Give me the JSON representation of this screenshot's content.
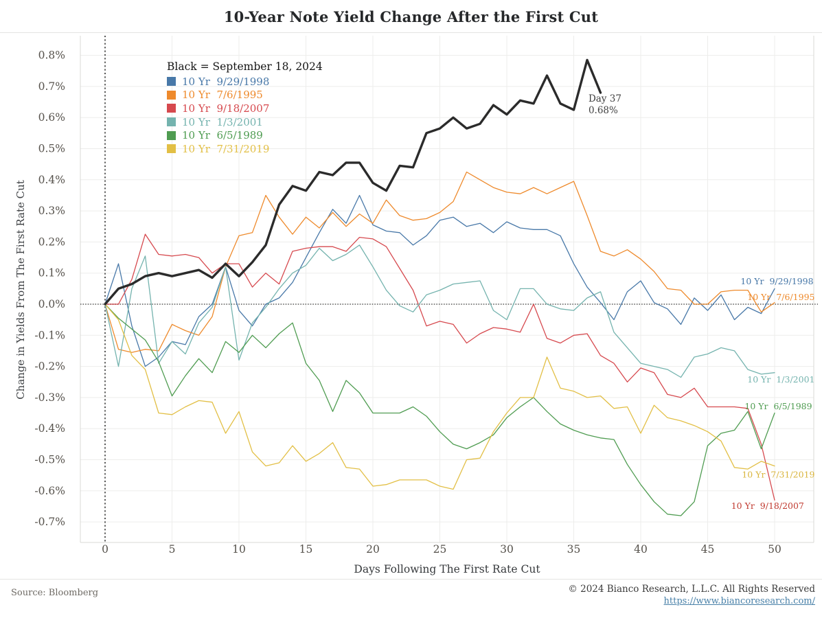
{
  "title": "10-Year Note Yield Change After the First Cut",
  "legend": {
    "heading": "Black = September 18, 2024"
  },
  "chart_data": {
    "type": "line",
    "title": "10-Year Note Yield Change After the First Cut",
    "xlabel": "Days Following The First Rate Cut",
    "ylabel": "Change in Yields From The First Rate Cut",
    "x_ticks": [
      0,
      5,
      10,
      15,
      20,
      25,
      30,
      35,
      40,
      45,
      50
    ],
    "y_ticks": [
      0.8,
      0.7,
      0.6,
      0.5,
      0.4,
      0.3,
      0.2,
      0.1,
      0.0,
      -0.1,
      -0.2,
      -0.3,
      -0.4,
      -0.5,
      -0.6,
      -0.7
    ],
    "y_tick_suffix": "%",
    "xlim": [
      -1.8,
      52.9
    ],
    "ylim": [
      -0.77,
      0.86
    ],
    "grid": true,
    "zero_line": true,
    "day_zero_rule": true,
    "x_step": 1,
    "series": [
      {
        "name": "September 18, 2024",
        "legend_label": null,
        "color": "#2b2b2b",
        "width": 3.4,
        "x_start": 0,
        "values": [
          0.0,
          0.05,
          0.065,
          0.09,
          0.1,
          0.09,
          0.1,
          0.11,
          0.085,
          0.13,
          0.09,
          0.135,
          0.19,
          0.32,
          0.38,
          0.365,
          0.425,
          0.415,
          0.455,
          0.455,
          0.39,
          0.365,
          0.445,
          0.44,
          0.55,
          0.565,
          0.6,
          0.565,
          0.58,
          0.64,
          0.61,
          0.655,
          0.645,
          0.735,
          0.645,
          0.625,
          0.785,
          0.68
        ]
      },
      {
        "name": "10 Yr  9/29/1998",
        "color": "#4878a8",
        "width": 1.3,
        "x_start": 0,
        "values": [
          0.0,
          0.13,
          -0.07,
          -0.2,
          -0.17,
          -0.12,
          -0.13,
          -0.04,
          0.0,
          0.12,
          -0.02,
          -0.07,
          0.0,
          0.02,
          0.07,
          0.15,
          0.23,
          0.305,
          0.26,
          0.35,
          0.255,
          0.235,
          0.23,
          0.19,
          0.22,
          0.27,
          0.28,
          0.25,
          0.26,
          0.23,
          0.265,
          0.245,
          0.24,
          0.24,
          0.22,
          0.13,
          0.055,
          0.005,
          -0.05,
          0.04,
          0.075,
          0.005,
          -0.015,
          -0.065,
          0.02,
          -0.02,
          0.03,
          -0.05,
          -0.01,
          -0.03,
          0.05
        ]
      },
      {
        "name": "10 Yr  7/6/1995",
        "color": "#ee8a2c",
        "width": 1.3,
        "x_start": 0,
        "values": [
          0.0,
          -0.145,
          -0.155,
          -0.145,
          -0.15,
          -0.065,
          -0.085,
          -0.1,
          -0.04,
          0.12,
          0.22,
          0.23,
          0.35,
          0.28,
          0.225,
          0.28,
          0.245,
          0.295,
          0.25,
          0.29,
          0.26,
          0.335,
          0.285,
          0.27,
          0.275,
          0.295,
          0.33,
          0.425,
          0.4,
          0.375,
          0.36,
          0.355,
          0.375,
          0.355,
          0.375,
          0.395,
          0.285,
          0.17,
          0.155,
          0.175,
          0.145,
          0.105,
          0.05,
          0.045,
          0.0,
          0.0,
          0.04,
          0.045,
          0.045,
          -0.025,
          0.005
        ]
      },
      {
        "name": "10 Yr  9/18/2007",
        "color": "#d6494e",
        "width": 1.3,
        "x_start": 0,
        "values": [
          0.0,
          0.0,
          0.08,
          0.225,
          0.16,
          0.155,
          0.16,
          0.15,
          0.1,
          0.13,
          0.13,
          0.055,
          0.1,
          0.065,
          0.17,
          0.18,
          0.185,
          0.185,
          0.17,
          0.215,
          0.21,
          0.185,
          0.115,
          0.045,
          -0.07,
          -0.055,
          -0.065,
          -0.125,
          -0.095,
          -0.075,
          -0.08,
          -0.09,
          0.0,
          -0.11,
          -0.125,
          -0.1,
          -0.095,
          -0.165,
          -0.19,
          -0.25,
          -0.205,
          -0.22,
          -0.29,
          -0.3,
          -0.27,
          -0.33,
          -0.33,
          -0.33,
          -0.335,
          -0.45,
          -0.63
        ]
      },
      {
        "name": "10 Yr  1/3/2001",
        "color": "#74b3ae",
        "width": 1.3,
        "x_start": 0,
        "values": [
          0.0,
          -0.2,
          0.05,
          0.155,
          -0.19,
          -0.12,
          -0.16,
          -0.06,
          -0.01,
          0.12,
          -0.18,
          -0.06,
          -0.01,
          0.05,
          0.1,
          0.125,
          0.18,
          0.14,
          0.16,
          0.19,
          0.12,
          0.045,
          -0.005,
          -0.025,
          0.03,
          0.045,
          0.065,
          0.07,
          0.075,
          -0.02,
          -0.05,
          0.05,
          0.05,
          0.0,
          -0.015,
          -0.02,
          0.02,
          0.04,
          -0.09,
          -0.14,
          -0.19,
          -0.2,
          -0.21,
          -0.235,
          -0.17,
          -0.16,
          -0.14,
          -0.15,
          -0.21,
          -0.225,
          -0.22
        ]
      },
      {
        "name": "10 Yr  6/5/1989",
        "color": "#4f9c51",
        "width": 1.3,
        "x_start": 0,
        "values": [
          0.0,
          -0.045,
          -0.08,
          -0.115,
          -0.185,
          -0.295,
          -0.23,
          -0.175,
          -0.22,
          -0.12,
          -0.155,
          -0.1,
          -0.14,
          -0.095,
          -0.06,
          -0.19,
          -0.245,
          -0.345,
          -0.245,
          -0.285,
          -0.35,
          -0.35,
          -0.35,
          -0.33,
          -0.36,
          -0.41,
          -0.45,
          -0.465,
          -0.445,
          -0.42,
          -0.365,
          -0.33,
          -0.3,
          -0.345,
          -0.385,
          -0.405,
          -0.42,
          -0.43,
          -0.435,
          -0.515,
          -0.58,
          -0.635,
          -0.675,
          -0.68,
          -0.635,
          -0.455,
          -0.415,
          -0.405,
          -0.345,
          -0.465,
          -0.35
        ]
      },
      {
        "name": "10 Yr  7/31/2019",
        "color": "#e2bf45",
        "width": 1.3,
        "x_start": 0,
        "values": [
          0.0,
          -0.05,
          -0.165,
          -0.21,
          -0.35,
          -0.355,
          -0.33,
          -0.31,
          -0.315,
          -0.415,
          -0.345,
          -0.475,
          -0.52,
          -0.51,
          -0.455,
          -0.505,
          -0.48,
          -0.445,
          -0.525,
          -0.53,
          -0.585,
          -0.58,
          -0.565,
          -0.565,
          -0.565,
          -0.585,
          -0.595,
          -0.5,
          -0.495,
          -0.41,
          -0.35,
          -0.3,
          -0.3,
          -0.17,
          -0.27,
          -0.28,
          -0.3,
          -0.295,
          -0.335,
          -0.33,
          -0.415,
          -0.325,
          -0.365,
          -0.375,
          -0.39,
          -0.41,
          -0.44,
          -0.525,
          -0.53,
          -0.505,
          -0.52
        ]
      }
    ],
    "annotation": {
      "lines": [
        "Day 37",
        "0.68%"
      ],
      "day": 36.1,
      "value": 0.651,
      "color": "#3f3f3f"
    },
    "end_labels": [
      {
        "text": "10 Yr  9/29/1998",
        "color": "#4878a8",
        "day": 52.9,
        "value": 0.073
      },
      {
        "text": "10 Yr  7/6/1995",
        "color": "#ee8a2c",
        "day": 53.0,
        "value": 0.022
      },
      {
        "text": "10 Yr  1/3/2001",
        "color": "#74b3ae",
        "day": 53.0,
        "value": -0.243
      },
      {
        "text": "10 Yr  6/5/1989",
        "color": "#4f9c51",
        "day": 52.8,
        "value": -0.329
      },
      {
        "text": "10 Yr  7/31/2019",
        "color": "#d9b43c",
        "day": 53.0,
        "value": -0.549
      },
      {
        "text": "10 Yr  9/18/2007",
        "color": "#c0392f",
        "day": 52.2,
        "value": -0.649
      }
    ]
  },
  "footer": {
    "source": "Source: Bloomberg",
    "copyright": "© 2024 Bianco Research, L.L.C. All Rights Reserved",
    "link": "https://www.biancoresearch.com/"
  }
}
